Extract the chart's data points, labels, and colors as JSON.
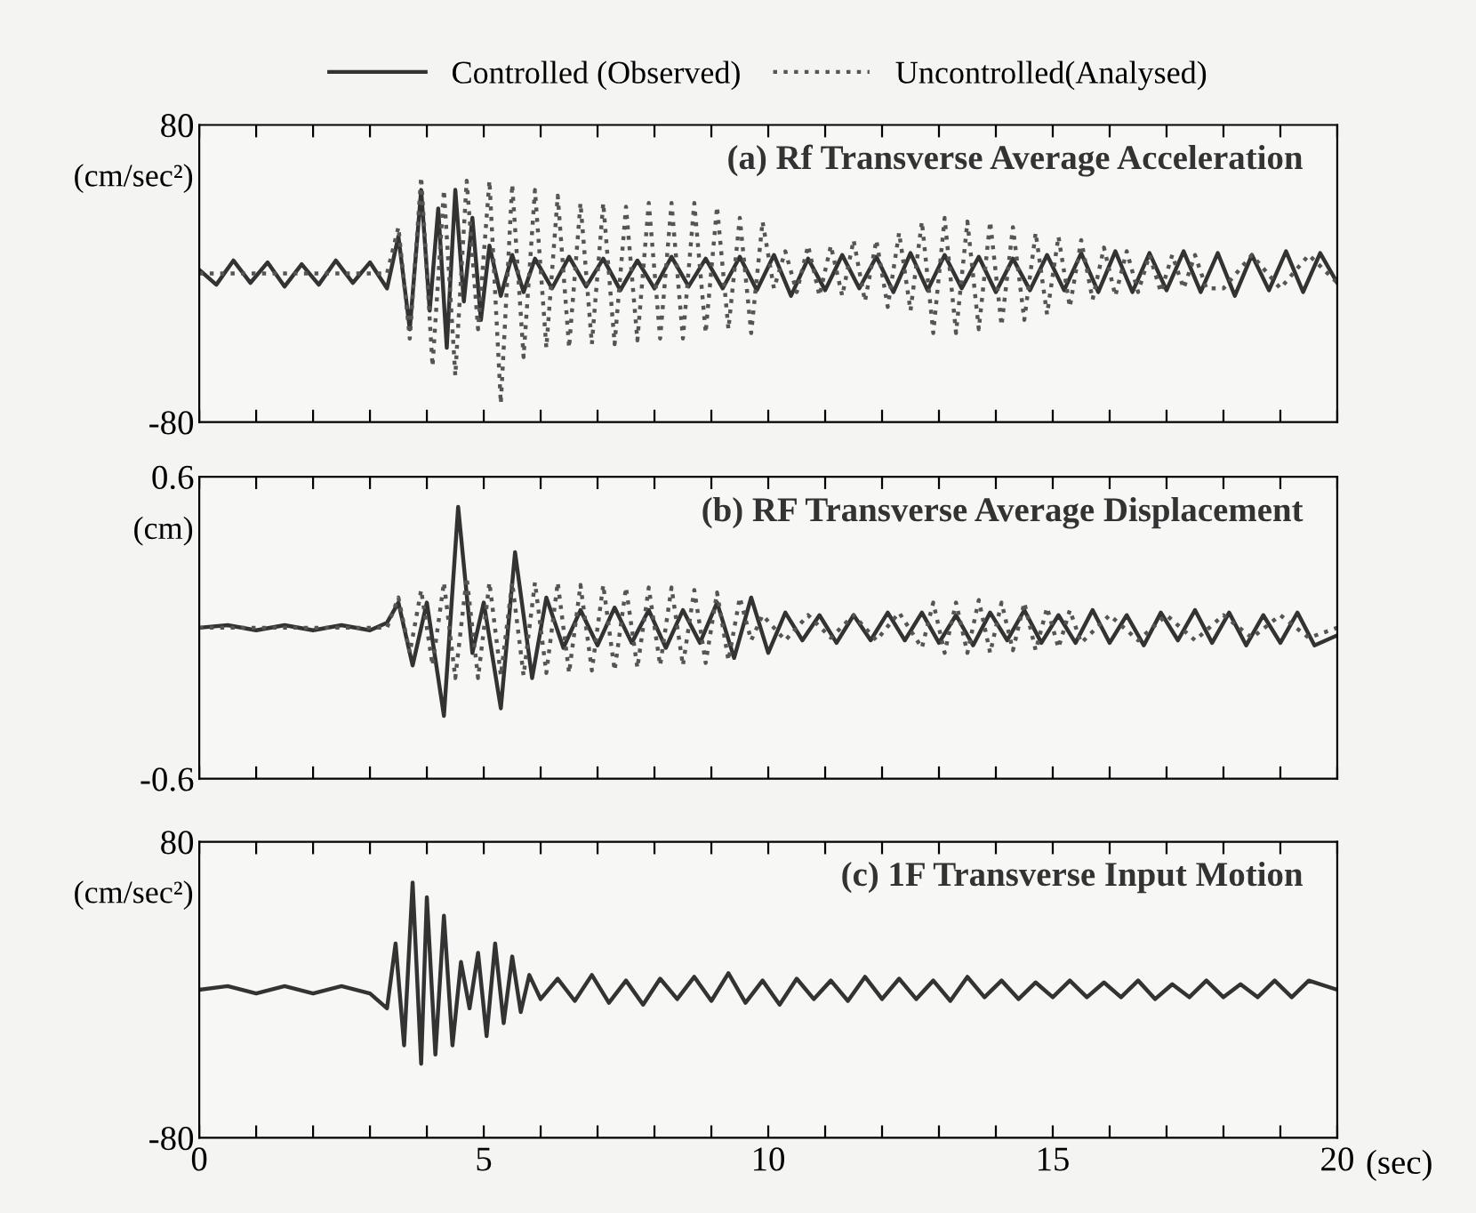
{
  "chart_data": [
    {
      "type": "line",
      "title": "(a) Rf Transverse Average Acceleration",
      "ylabel": "(cm/sec²)",
      "legend": "top",
      "tick_labels": "y",
      "grid": false,
      "xlim": [
        0,
        20
      ],
      "xticks": [
        0,
        {
          "value": 1,
          "label": null
        },
        {
          "value": 2,
          "label": null
        },
        {
          "value": 3,
          "label": null
        },
        {
          "value": 4,
          "label": null
        },
        5,
        {
          "value": 6,
          "label": null
        },
        {
          "value": 7,
          "label": null
        },
        {
          "value": 8,
          "label": null
        },
        {
          "value": 9,
          "label": null
        },
        10,
        {
          "value": 11,
          "label": null
        },
        {
          "value": 12,
          "label": null
        },
        {
          "value": 13,
          "label": null
        },
        {
          "value": 14,
          "label": null
        },
        15,
        {
          "value": 16,
          "label": null
        },
        {
          "value": 17,
          "label": null
        },
        {
          "value": 18,
          "label": null
        },
        {
          "value": 19,
          "label": null
        },
        20
      ],
      "ylim": [
        -80,
        80
      ],
      "yticks": [
        -80,
        80
      ],
      "series": [
        {
          "name": "Controlled (Observed)",
          "color": "#333333",
          "line_style": "solid",
          "x": [
            0,
            0.3,
            0.6,
            0.9,
            1.2,
            1.5,
            1.8,
            2.1,
            2.4,
            2.7,
            3.0,
            3.3,
            3.5,
            3.7,
            3.9,
            4.05,
            4.2,
            4.35,
            4.5,
            4.65,
            4.8,
            4.95,
            5.1,
            5.3,
            5.5,
            5.7,
            5.9,
            6.2,
            6.5,
            6.8,
            7.1,
            7.4,
            7.7,
            8.0,
            8.3,
            8.6,
            8.9,
            9.2,
            9.5,
            9.8,
            10.1,
            10.4,
            10.7,
            11.0,
            11.3,
            11.6,
            11.9,
            12.2,
            12.5,
            12.8,
            13.1,
            13.4,
            13.7,
            14.0,
            14.3,
            14.6,
            14.9,
            15.2,
            15.5,
            15.8,
            16.1,
            16.4,
            16.7,
            17.0,
            17.3,
            17.6,
            17.9,
            18.2,
            18.5,
            18.8,
            19.1,
            19.4,
            19.7,
            20.0
          ],
          "values": [
            2,
            -6,
            7,
            -5,
            6,
            -7,
            5,
            -6,
            7,
            -5,
            6,
            -8,
            20,
            -30,
            45,
            -20,
            35,
            -40,
            45,
            -15,
            30,
            -25,
            15,
            -12,
            10,
            -10,
            8,
            -8,
            9,
            -7,
            8,
            -9,
            7,
            -8,
            9,
            -7,
            8,
            -8,
            9,
            -9,
            10,
            -12,
            8,
            -9,
            10,
            -8,
            9,
            -10,
            11,
            -9,
            10,
            -8,
            9,
            -10,
            8,
            -9,
            10,
            -9,
            11,
            -10,
            12,
            -10,
            11,
            -9,
            12,
            -10,
            11,
            -12,
            10,
            -9,
            12,
            -10,
            11,
            -5
          ]
        },
        {
          "name": "Uncontrolled(Analysed)",
          "color": "#555555",
          "line_style": "dotted",
          "x": [
            0,
            3.3,
            3.5,
            3.7,
            3.9,
            4.1,
            4.3,
            4.5,
            4.7,
            4.9,
            5.1,
            5.3,
            5.5,
            5.7,
            5.9,
            6.1,
            6.3,
            6.5,
            6.7,
            6.9,
            7.1,
            7.3,
            7.5,
            7.7,
            7.9,
            8.1,
            8.3,
            8.5,
            8.7,
            8.9,
            9.1,
            9.3,
            9.5,
            9.7,
            9.9,
            10.1,
            10.3,
            10.5,
            10.7,
            10.9,
            11.1,
            11.3,
            11.5,
            11.7,
            11.9,
            12.1,
            12.3,
            12.5,
            12.7,
            12.9,
            13.1,
            13.3,
            13.5,
            13.7,
            13.9,
            14.1,
            14.3,
            14.5,
            14.7,
            14.9,
            15.1,
            15.3,
            15.5,
            15.7,
            15.9,
            16.1,
            16.3,
            16.5,
            16.7,
            16.9,
            17.1,
            17.3,
            17.5,
            17.7,
            18.0,
            18.5,
            19.0,
            19.5,
            20.0
          ],
          "values": [
            0,
            0,
            25,
            -35,
            52,
            -50,
            45,
            -55,
            50,
            -30,
            50,
            -70,
            48,
            -45,
            45,
            -40,
            42,
            -40,
            38,
            -38,
            38,
            -38,
            36,
            -36,
            38,
            -35,
            38,
            -35,
            38,
            -32,
            36,
            -30,
            30,
            -32,
            28,
            -8,
            12,
            -10,
            15,
            -12,
            15,
            -12,
            18,
            -15,
            18,
            -18,
            22,
            -20,
            28,
            -32,
            30,
            -32,
            28,
            -30,
            28,
            -28,
            25,
            -25,
            22,
            -22,
            20,
            -18,
            18,
            -14,
            14,
            -12,
            12,
            -10,
            10,
            -10,
            10,
            -8,
            10,
            -8,
            -8,
            10,
            -8,
            10,
            -5
          ]
        }
      ]
    },
    {
      "type": "line",
      "title": "(b) RF Transverse Average Displacement",
      "ylabel": "(cm)",
      "tick_labels": "y",
      "grid": false,
      "xlim": [
        0,
        20
      ],
      "xticks": [
        0,
        {
          "value": 1,
          "label": null
        },
        {
          "value": 2,
          "label": null
        },
        {
          "value": 3,
          "label": null
        },
        {
          "value": 4,
          "label": null
        },
        5,
        {
          "value": 6,
          "label": null
        },
        {
          "value": 7,
          "label": null
        },
        {
          "value": 8,
          "label": null
        },
        {
          "value": 9,
          "label": null
        },
        10,
        {
          "value": 11,
          "label": null
        },
        {
          "value": 12,
          "label": null
        },
        {
          "value": 13,
          "label": null
        },
        {
          "value": 14,
          "label": null
        },
        15,
        {
          "value": 16,
          "label": null
        },
        {
          "value": 17,
          "label": null
        },
        {
          "value": 18,
          "label": null
        },
        {
          "value": 19,
          "label": null
        },
        20
      ],
      "ylim": [
        -0.6,
        0.6
      ],
      "yticks": [
        -0.6,
        0.6
      ],
      "series": [
        {
          "color": "#333333",
          "line_style": "solid",
          "x": [
            0,
            0.5,
            1.0,
            1.5,
            2.0,
            2.5,
            3.0,
            3.3,
            3.5,
            3.75,
            4.0,
            4.3,
            4.55,
            4.8,
            5.0,
            5.3,
            5.55,
            5.85,
            6.1,
            6.4,
            6.7,
            7.0,
            7.3,
            7.6,
            7.9,
            8.2,
            8.5,
            8.8,
            9.1,
            9.4,
            9.7,
            10.0,
            10.3,
            10.6,
            10.9,
            11.2,
            11.5,
            11.8,
            12.1,
            12.4,
            12.7,
            13.0,
            13.3,
            13.6,
            13.9,
            14.2,
            14.5,
            14.8,
            15.1,
            15.4,
            15.7,
            16.0,
            16.3,
            16.6,
            16.9,
            17.2,
            17.5,
            17.8,
            18.1,
            18.4,
            18.7,
            19.0,
            19.3,
            19.6,
            20.0
          ],
          "values": [
            0,
            0.01,
            -0.01,
            0.01,
            -0.01,
            0.01,
            -0.01,
            0.02,
            0.1,
            -0.15,
            0.1,
            -0.35,
            0.48,
            -0.1,
            0.1,
            -0.32,
            0.3,
            -0.2,
            0.12,
            -0.08,
            0.07,
            -0.07,
            0.08,
            -0.06,
            0.07,
            -0.08,
            0.07,
            -0.06,
            0.1,
            -0.12,
            0.12,
            -0.1,
            0.06,
            -0.05,
            0.05,
            -0.06,
            0.05,
            -0.05,
            0.06,
            -0.05,
            0.06,
            -0.06,
            0.05,
            -0.07,
            0.06,
            -0.05,
            0.07,
            -0.06,
            0.05,
            -0.06,
            0.07,
            -0.06,
            0.05,
            -0.07,
            0.06,
            -0.05,
            0.07,
            -0.06,
            0.06,
            -0.07,
            0.05,
            -0.06,
            0.06,
            -0.07,
            -0.03
          ]
        },
        {
          "color": "#555555",
          "line_style": "dotted",
          "x": [
            0,
            3.3,
            3.5,
            3.7,
            3.9,
            4.1,
            4.3,
            4.5,
            4.7,
            4.9,
            5.1,
            5.3,
            5.5,
            5.7,
            5.9,
            6.1,
            6.3,
            6.5,
            6.7,
            6.9,
            7.1,
            7.3,
            7.5,
            7.7,
            7.9,
            8.1,
            8.3,
            8.5,
            8.7,
            8.9,
            9.1,
            9.3,
            9.5,
            9.7,
            9.9,
            10.3,
            10.7,
            11.1,
            11.5,
            11.9,
            12.3,
            12.7,
            12.9,
            13.1,
            13.3,
            13.5,
            13.7,
            13.9,
            14.1,
            14.3,
            14.5,
            14.7,
            14.9,
            15.1,
            15.3,
            15.5,
            16.0,
            16.5,
            17.0,
            17.5,
            18.0,
            18.5,
            19.0,
            19.5,
            20.0
          ],
          "values": [
            0,
            0,
            0.12,
            -0.1,
            0.15,
            -0.15,
            0.18,
            -0.2,
            0.2,
            -0.2,
            0.18,
            -0.19,
            0.18,
            -0.19,
            0.18,
            -0.18,
            0.18,
            -0.18,
            0.17,
            -0.17,
            0.17,
            -0.17,
            0.16,
            -0.16,
            0.16,
            -0.15,
            0.16,
            -0.15,
            0.15,
            -0.14,
            0.14,
            -0.13,
            0.12,
            -0.05,
            0.05,
            -0.05,
            0.05,
            -0.04,
            0.05,
            -0.05,
            0.06,
            -0.08,
            0.1,
            -0.1,
            0.1,
            -0.1,
            0.11,
            -0.1,
            0.1,
            -0.09,
            0.1,
            -0.09,
            0.08,
            -0.08,
            0.07,
            -0.06,
            0.05,
            -0.05,
            0.05,
            -0.05,
            0.05,
            -0.04,
            0.05,
            -0.04,
            0
          ]
        }
      ]
    },
    {
      "type": "line",
      "title": "(c) 1F Transverse Input Motion",
      "ylabel": "(cm/sec²)",
      "xlabel": "(sec)",
      "grid": false,
      "xlim": [
        0,
        20
      ],
      "xticks": [
        0,
        {
          "value": 1,
          "label": null
        },
        {
          "value": 2,
          "label": null
        },
        {
          "value": 3,
          "label": null
        },
        {
          "value": 4,
          "label": null
        },
        5,
        {
          "value": 6,
          "label": null
        },
        {
          "value": 7,
          "label": null
        },
        {
          "value": 8,
          "label": null
        },
        {
          "value": 9,
          "label": null
        },
        10,
        {
          "value": 11,
          "label": null
        },
        {
          "value": 12,
          "label": null
        },
        {
          "value": 13,
          "label": null
        },
        {
          "value": 14,
          "label": null
        },
        15,
        {
          "value": 16,
          "label": null
        },
        {
          "value": 17,
          "label": null
        },
        {
          "value": 18,
          "label": null
        },
        {
          "value": 19,
          "label": null
        },
        20
      ],
      "ylim": [
        -80,
        80
      ],
      "yticks": [
        -80,
        80
      ],
      "series": [
        {
          "color": "#333333",
          "line_style": "solid",
          "x": [
            0,
            0.5,
            1.0,
            1.5,
            2.0,
            2.5,
            3.0,
            3.3,
            3.45,
            3.6,
            3.75,
            3.9,
            4.0,
            4.15,
            4.3,
            4.45,
            4.6,
            4.75,
            4.9,
            5.05,
            5.2,
            5.35,
            5.5,
            5.65,
            5.8,
            6.0,
            6.3,
            6.6,
            6.9,
            7.2,
            7.5,
            7.8,
            8.1,
            8.4,
            8.7,
            9.0,
            9.3,
            9.6,
            9.9,
            10.2,
            10.5,
            10.8,
            11.1,
            11.4,
            11.7,
            12.0,
            12.3,
            12.6,
            12.9,
            13.2,
            13.5,
            13.8,
            14.1,
            14.4,
            14.7,
            15.0,
            15.3,
            15.6,
            15.9,
            16.2,
            16.5,
            16.8,
            17.1,
            17.4,
            17.7,
            18.0,
            18.3,
            18.6,
            18.9,
            19.2,
            19.5,
            20.0
          ],
          "values": [
            0,
            2,
            -2,
            2,
            -2,
            2,
            -2,
            -10,
            25,
            -30,
            58,
            -40,
            50,
            -35,
            40,
            -30,
            15,
            -10,
            20,
            -25,
            25,
            -18,
            18,
            -12,
            8,
            -5,
            6,
            -6,
            8,
            -7,
            5,
            -8,
            6,
            -5,
            7,
            -6,
            9,
            -7,
            5,
            -8,
            6,
            -5,
            5,
            -6,
            7,
            -5,
            6,
            -5,
            5,
            -6,
            7,
            -4,
            5,
            -5,
            4,
            -4,
            5,
            -4,
            4,
            -4,
            5,
            -5,
            3,
            -4,
            5,
            -4,
            3,
            -4,
            5,
            -4,
            5,
            0
          ]
        }
      ]
    }
  ]
}
